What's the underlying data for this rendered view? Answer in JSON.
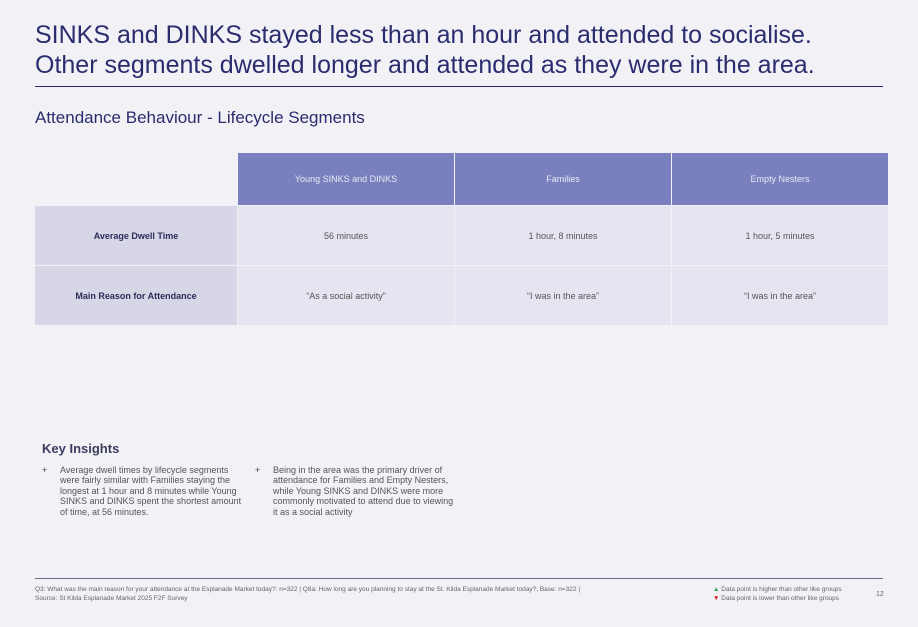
{
  "headline": [
    "SINKS and DINKS stayed less than an hour and attended to socialise.",
    "Other segments dwelled longer and attended as they were in the area."
  ],
  "subtitle": "Attendance Behaviour - Lifecycle Segments",
  "table": {
    "columns": [
      "Young SINKS and DINKS",
      "Families",
      "Empty Nesters"
    ],
    "rows": [
      {
        "label": "Average Dwell Time",
        "values": [
          "56 minutes",
          "1 hour, 8 minutes",
          "1 hour, 5 minutes"
        ]
      },
      {
        "label": "Main Reason for Attendance",
        "values": [
          "“As a social activity”",
          "“I was in the area”",
          "“I was in the area”"
        ]
      }
    ]
  },
  "key_insights": {
    "title": "Key Insights",
    "bullet": "+",
    "items": [
      "Average dwell times by lifecycle segments were fairly similar with Families staying the longest at 1 hour and 8 minutes while Young SINKS and DINKS spent the shortest amount of time, at 56 minutes.",
      "Being in the area was the primary driver of attendance for Families and Empty Nesters, while Young SINKS and DINKS were more commonly motivated to attend due to viewing it as a social activity"
    ]
  },
  "footer": {
    "question": "Q3: What was the main reason for your attendance at the Esplanade Market today?: n=322 | Q8a: How long are you planning to stay at the St. Kilda Esplanade Market today?; Base: n=322 |",
    "source": "Source: St Kilda Esplanade Market 2025 F2F Survey",
    "legend_higher": "Data point is higher than other like groups",
    "legend_lower": "Data point is lower than other like groups",
    "page_number": "12"
  },
  "colors": {
    "header": "#7a80bd",
    "accent": "#2a2c6e",
    "up": "#2aa84a",
    "down": "#d62020"
  }
}
